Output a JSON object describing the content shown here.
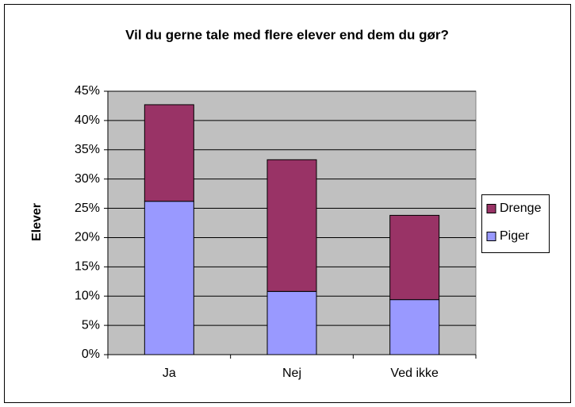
{
  "chart_data": {
    "type": "bar",
    "stacked": true,
    "title": "Vil du gerne tale med flere elever end dem du gør?",
    "y_label": "Elever",
    "categories": [
      "Ja",
      "Nej",
      "Ved ikke"
    ],
    "series": [
      {
        "name": "Piger",
        "color": "#9999ff",
        "values": [
          26.2,
          10.8,
          9.4
        ]
      },
      {
        "name": "Drenge",
        "color": "#993366",
        "values": [
          16.5,
          22.5,
          14.4
        ]
      }
    ],
    "ylim": [
      0,
      45
    ],
    "yticks": [
      {
        "value": 0,
        "label": "0%"
      },
      {
        "value": 5,
        "label": "5%"
      },
      {
        "value": 10,
        "label": "10%"
      },
      {
        "value": 15,
        "label": "15%"
      },
      {
        "value": 20,
        "label": "20%"
      },
      {
        "value": 25,
        "label": "25%"
      },
      {
        "value": 30,
        "label": "30%"
      },
      {
        "value": 35,
        "label": "35%"
      },
      {
        "value": 40,
        "label": "40%"
      },
      {
        "value": 45,
        "label": "45%"
      }
    ],
    "grid": true,
    "legend": "right",
    "plot_background": "#c0c0c0"
  }
}
